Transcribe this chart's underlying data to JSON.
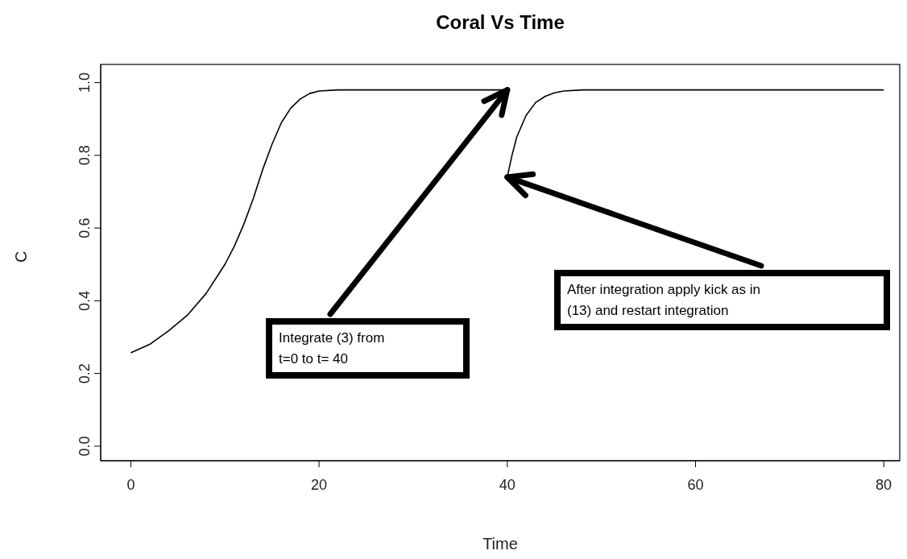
{
  "chart_data": {
    "type": "line",
    "title": "Coral Vs Time",
    "xlabel": "Time",
    "ylabel": "C",
    "xlim": [
      -3.2,
      81.7
    ],
    "ylim": [
      -0.04,
      1.05
    ],
    "xticks": [
      0,
      20,
      40,
      60,
      80
    ],
    "yticks": [
      {
        "value": 0,
        "label": "0.0"
      },
      0.2,
      0.4,
      0.6,
      0.8,
      {
        "value": 1,
        "label": "1.0"
      }
    ],
    "grid": false,
    "legend": false,
    "series": [
      {
        "color": "#000000",
        "x": [
          0,
          2,
          4,
          6,
          8,
          10,
          11,
          12,
          13,
          14,
          15,
          16,
          17,
          18,
          19,
          20,
          22,
          25,
          30,
          35,
          40
        ],
        "values": [
          0.257,
          0.28,
          0.317,
          0.36,
          0.42,
          0.5,
          0.55,
          0.61,
          0.68,
          0.76,
          0.83,
          0.89,
          0.93,
          0.955,
          0.97,
          0.977,
          0.98,
          0.98,
          0.98,
          0.98,
          0.98
        ]
      },
      {
        "color": "#000000",
        "x": [
          40,
          40.5,
          41,
          42,
          43,
          44,
          45,
          46,
          48,
          50,
          60,
          70,
          80
        ],
        "values": [
          0.74,
          0.8,
          0.85,
          0.91,
          0.945,
          0.962,
          0.972,
          0.977,
          0.98,
          0.98,
          0.98,
          0.98,
          0.98
        ]
      }
    ],
    "annotations": [
      {
        "text": "Integrate (3) from\nt=0 to t= 40",
        "x": 40,
        "y": 0.98
      },
      {
        "text": "After integration apply kick as in\n(13) and restart integration",
        "x": 40,
        "y": 0.74
      }
    ]
  }
}
